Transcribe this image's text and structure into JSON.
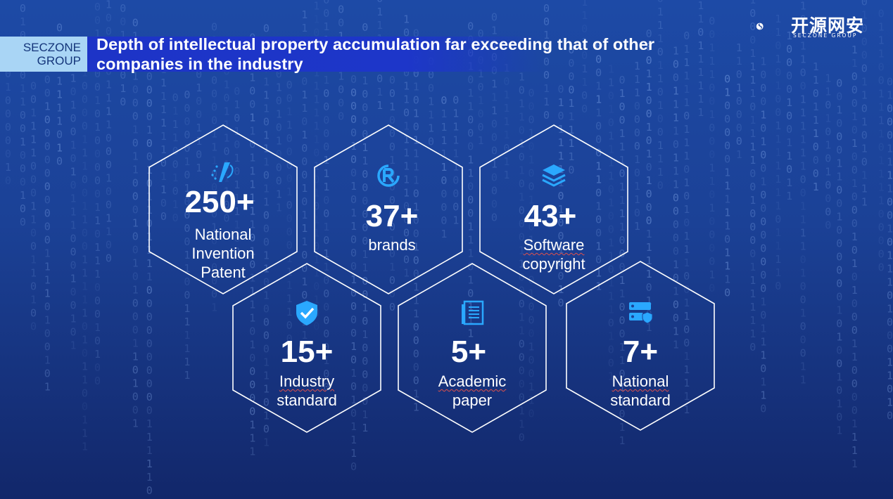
{
  "header": {
    "tag_line1": "SECZONE",
    "tag_line2": "GROUP",
    "title_line1": "Depth of intellectual property accumulation far exceeding that of other",
    "title_line2": "companies in the industry"
  },
  "logo": {
    "cn": "开源网安",
    "en": "SECZONE GROUP"
  },
  "stats": [
    {
      "value": "250+",
      "label1": "National",
      "label2": "Invention",
      "label3": "Patent",
      "icon": "patent-icon"
    },
    {
      "value": "37+",
      "label1": "brands",
      "icon": "registered-trademark-icon"
    },
    {
      "value": "43+",
      "label1": "Software",
      "label2": "copyright",
      "icon": "layers-icon"
    },
    {
      "value": "15+",
      "label1": "Industry",
      "label2": "standard",
      "icon": "shield-check-icon"
    },
    {
      "value": "5+",
      "label1": "Academic",
      "label2": "paper",
      "icon": "document-icon"
    },
    {
      "value": "7+",
      "label1": "National",
      "label2": "standard",
      "icon": "server-shield-icon"
    }
  ],
  "colors": {
    "background": "#1b4196",
    "title_band": "#1d36c9",
    "tag_bg": "#a9d5f5",
    "accent": "#2aa8ff"
  }
}
